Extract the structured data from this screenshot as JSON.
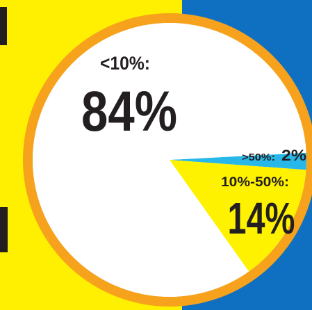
{
  "chart_data": {
    "type": "pie",
    "title": "",
    "slices": [
      {
        "category": "<10%:",
        "value": 84,
        "value_label": "84%",
        "color": "#ffffff"
      },
      {
        "category": "10%-50%:",
        "value": 14,
        "value_label": "14%",
        "color": "#fff200"
      },
      {
        "category": ">50%:",
        "value": 2,
        "value_label": "2%",
        "color": "#27b7e8"
      }
    ]
  },
  "colors": {
    "background_left": "#ffef00",
    "background_right": "#0f6fc0",
    "ring": "#f6a21d",
    "text": "#231f20"
  }
}
